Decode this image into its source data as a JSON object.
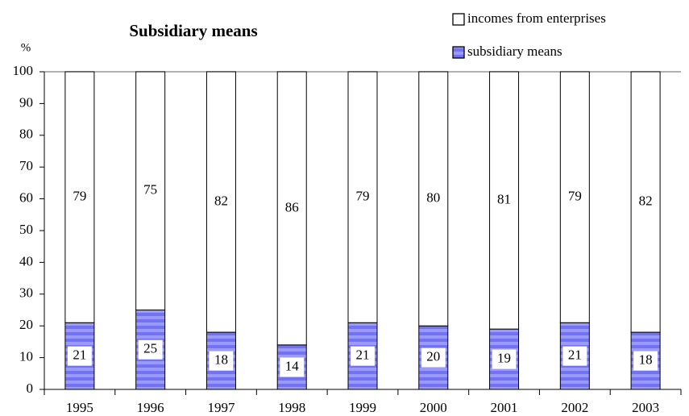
{
  "chart_data": {
    "type": "stacked_bar",
    "title": "Subsidiary means",
    "y_label": "%",
    "categories": [
      "1995",
      "1996",
      "1997",
      "1998",
      "1999",
      "2000",
      "2001",
      "2002",
      "2003"
    ],
    "series": [
      {
        "name": "subsidiary means",
        "color": "#7272f2",
        "values": [
          21,
          25,
          18,
          14,
          21,
          20,
          19,
          21,
          18
        ]
      },
      {
        "name": "incomes from enterprises",
        "color": "#ffffff",
        "values": [
          79,
          75,
          82,
          86,
          79,
          80,
          81,
          79,
          82
        ]
      }
    ],
    "ylim": [
      0,
      100
    ],
    "yticks": [
      0,
      10,
      20,
      30,
      40,
      50,
      60,
      70,
      80,
      90,
      100
    ],
    "legend": "top-right"
  }
}
